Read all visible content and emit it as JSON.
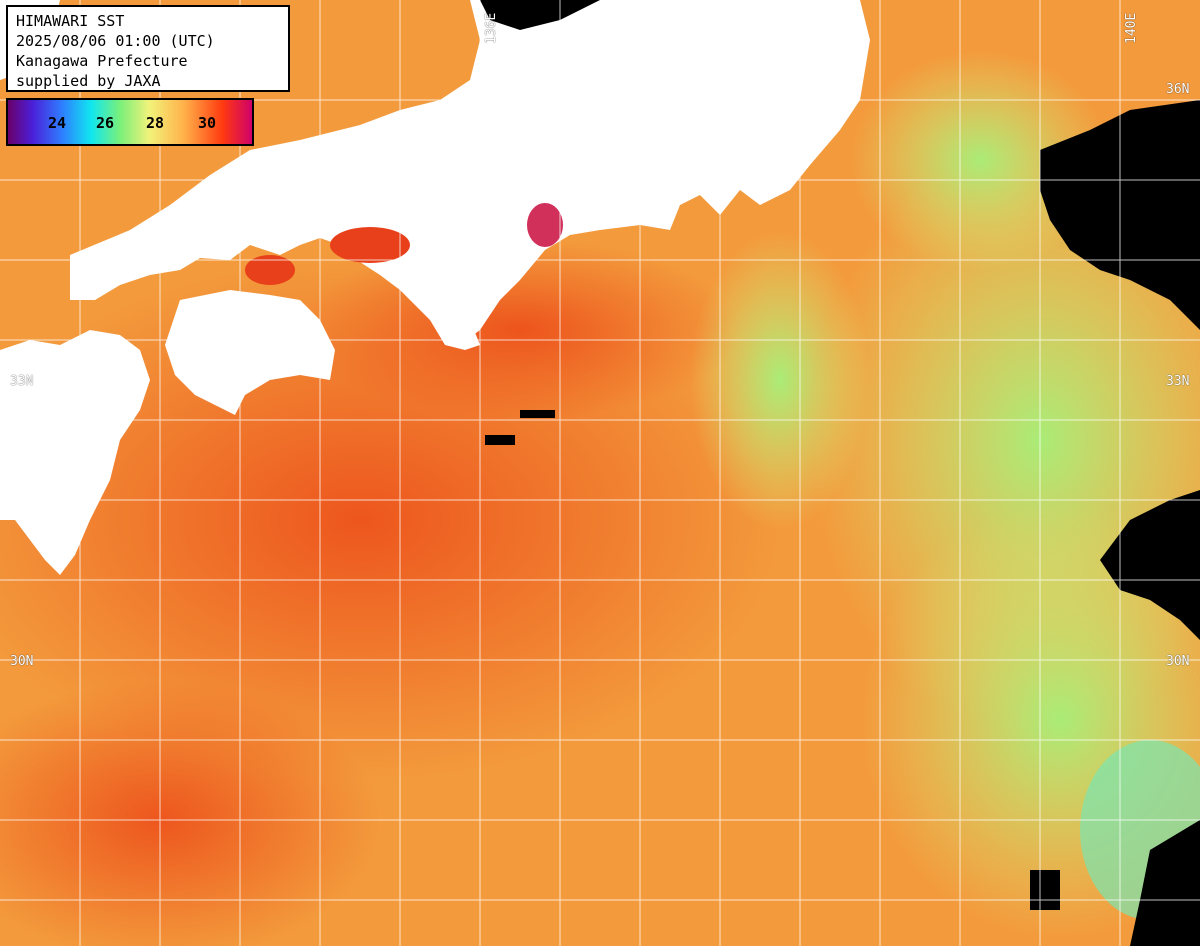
{
  "title": {
    "line1": "HIMAWARI SST",
    "line2": "2025/08/06 01:00 (UTC)",
    "line3": "Kanagawa Prefecture",
    "line4": "supplied by JAXA"
  },
  "legend": {
    "labels": [
      "24",
      "26",
      "28",
      "30"
    ],
    "colors": [
      "#6a006a",
      "#2f7cff",
      "#10e6f0",
      "#7af07a",
      "#f2f27a",
      "#ffb24a",
      "#ff3a10",
      "#d0006a"
    ]
  },
  "grid_labels": {
    "lon_136e": "136E",
    "lon_140e": "140E",
    "lat_36n": "36N",
    "lat_33n_left": "33N",
    "lat_33n_right": "33N",
    "lat_30n_left": "30N",
    "lat_30n_right": "30N"
  },
  "colors": {
    "land": "#ffffff",
    "no_data": "#000000",
    "warm_sea": "#f39a3c",
    "hot_sea": "#ee5a20",
    "cool_sea": "#a8f07c",
    "grid": "#ffffff"
  }
}
